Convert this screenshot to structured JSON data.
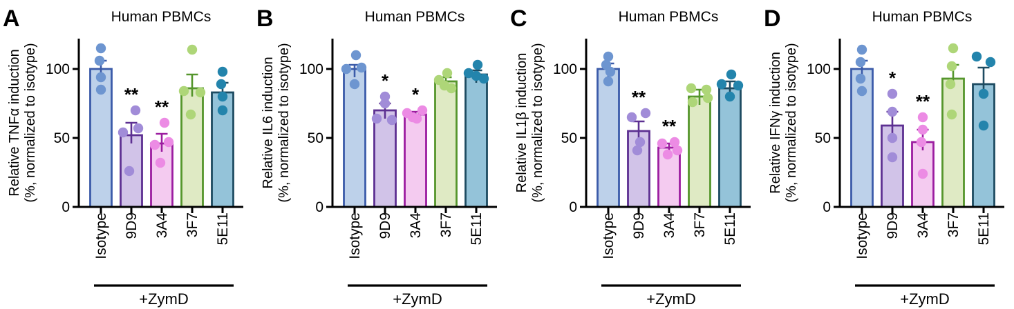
{
  "figure": {
    "background": "#ffffff",
    "axis_color": "#000000",
    "text_color": "#000000",
    "categories": [
      "Isotype",
      "9D9",
      "3A4",
      "3F7",
      "5E11"
    ],
    "group_label": "+ZymD",
    "palette": [
      {
        "name": "isotype-blue",
        "fill": "#bdd1ea",
        "stroke": "#3b5ba9",
        "dot": "#6d95d0"
      },
      {
        "name": "9d9-purple",
        "fill": "#d1c3e8",
        "stroke": "#5d3092",
        "dot": "#a18cd8"
      },
      {
        "name": "3a4-pink",
        "fill": "#f4cbf0",
        "stroke": "#9c1da0",
        "dot": "#ec8be4"
      },
      {
        "name": "3f7-green",
        "fill": "#dfeac4",
        "stroke": "#55962c",
        "dot": "#aed678"
      },
      {
        "name": "5e11-teal",
        "fill": "#94c3d9",
        "stroke": "#1d4b61",
        "dot": "#2384ac"
      }
    ]
  },
  "chart_data": [
    {
      "type": "bar",
      "panel_label": "A",
      "title": "Human PBMCs",
      "ylabel": "Relative TNFα induction",
      "ylabel_line2": "(%, normalized to isotype)",
      "xlabel_group": "+ZymD",
      "categories": [
        "Isotype",
        "9D9",
        "3A4",
        "3F7",
        "5E11"
      ],
      "values": [
        100,
        52,
        46,
        86,
        83
      ],
      "error_upper": [
        6,
        9,
        7,
        10,
        7
      ],
      "points": [
        [
          115,
          106,
          94,
          85
        ],
        [
          70,
          57,
          54,
          26
        ],
        [
          61,
          47,
          45,
          32
        ],
        [
          114,
          84,
          83,
          67
        ],
        [
          98,
          89,
          80,
          70
        ]
      ],
      "points_dx": [
        [
          0,
          -2,
          0,
          0
        ],
        [
          6,
          10,
          -12,
          -3
        ],
        [
          4,
          10,
          -10,
          -2
        ],
        [
          0,
          -12,
          12,
          -2
        ],
        [
          0,
          -2,
          0,
          0
        ]
      ],
      "significance": [
        "",
        "**",
        "**",
        "",
        ""
      ],
      "yticks": [
        0,
        50,
        100
      ],
      "ylim": [
        0,
        122
      ],
      "grid": false,
      "legend": false
    },
    {
      "type": "bar",
      "panel_label": "B",
      "title": "Human PBMCs",
      "ylabel": "Relative IL6 induction",
      "ylabel_line2": "(%, normalized to isotype)",
      "xlabel_group": "+ZymD",
      "categories": [
        "Isotype",
        "9D9",
        "3A4",
        "3F7",
        "5E11"
      ],
      "values": [
        100,
        70,
        67,
        91,
        96
      ],
      "error_upper": [
        3,
        5,
        2,
        3,
        3
      ],
      "points": [
        [
          110,
          101,
          100,
          89
        ],
        [
          80,
          75,
          64,
          63
        ],
        [
          70,
          68,
          65,
          64
        ],
        [
          97,
          92,
          88,
          86
        ],
        [
          103,
          97,
          95,
          93
        ]
      ],
      "points_dx": [
        [
          2,
          10,
          -12,
          0
        ],
        [
          0,
          0,
          -12,
          10
        ],
        [
          10,
          -12,
          -4,
          2
        ],
        [
          2,
          -10,
          -2,
          8
        ],
        [
          2,
          -11,
          0,
          11
        ]
      ],
      "significance": [
        "",
        "*",
        "*",
        "",
        ""
      ],
      "yticks": [
        0,
        50,
        100
      ],
      "ylim": [
        0,
        122
      ],
      "grid": false,
      "legend": false
    },
    {
      "type": "bar",
      "panel_label": "C",
      "title": "Human PBMCs",
      "ylabel": "Relative IL1β induction",
      "ylabel_line2": "(%, normalized to isotype)",
      "xlabel_group": "+ZymD",
      "categories": [
        "Isotype",
        "9D9",
        "3A4",
        "3F7",
        "5E11"
      ],
      "values": [
        100,
        55,
        43,
        80,
        86
      ],
      "error_upper": [
        4,
        7,
        3,
        5,
        5
      ],
      "points": [
        [
          109,
          103,
          98,
          91
        ],
        [
          68,
          65,
          47,
          41
        ],
        [
          47,
          46,
          41,
          38
        ],
        [
          86,
          85,
          79,
          76
        ],
        [
          96,
          89,
          88,
          80
        ]
      ],
      "points_dx": [
        [
          0,
          -3,
          3,
          0
        ],
        [
          10,
          -10,
          2,
          -2
        ],
        [
          8,
          -10,
          12,
          -2
        ],
        [
          -12,
          10,
          12,
          -10
        ],
        [
          2,
          -12,
          12,
          0
        ]
      ],
      "significance": [
        "",
        "**",
        "**",
        "",
        ""
      ],
      "yticks": [
        0,
        50,
        100
      ],
      "ylim": [
        0,
        122
      ],
      "grid": false,
      "legend": false
    },
    {
      "type": "bar",
      "panel_label": "D",
      "title": "Human PBMCs",
      "ylabel": "Relative IFNγ induction",
      "ylabel_line2": "(%, normalized to isotype)",
      "xlabel_group": "+ZymD",
      "categories": [
        "Isotype",
        "9D9",
        "3A4",
        "3F7",
        "5E11"
      ],
      "values": [
        100,
        59,
        47,
        93,
        89
      ],
      "error_upper": [
        6,
        10,
        9,
        10,
        12
      ],
      "points": [
        [
          114,
          105,
          93,
          84
        ],
        [
          82,
          69,
          50,
          36
        ],
        [
          65,
          56,
          47,
          24
        ],
        [
          115,
          102,
          89,
          67
        ],
        [
          109,
          105,
          82,
          59
        ]
      ],
      "points_dx": [
        [
          0,
          -2,
          -2,
          0
        ],
        [
          0,
          0,
          0,
          0
        ],
        [
          0,
          0,
          -2,
          0
        ],
        [
          0,
          -2,
          -4,
          -2
        ],
        [
          -10,
          10,
          0,
          0
        ]
      ],
      "significance": [
        "",
        "*",
        "**",
        "",
        ""
      ],
      "yticks": [
        0,
        50,
        100
      ],
      "ylim": [
        0,
        122
      ],
      "grid": false,
      "legend": false
    }
  ]
}
